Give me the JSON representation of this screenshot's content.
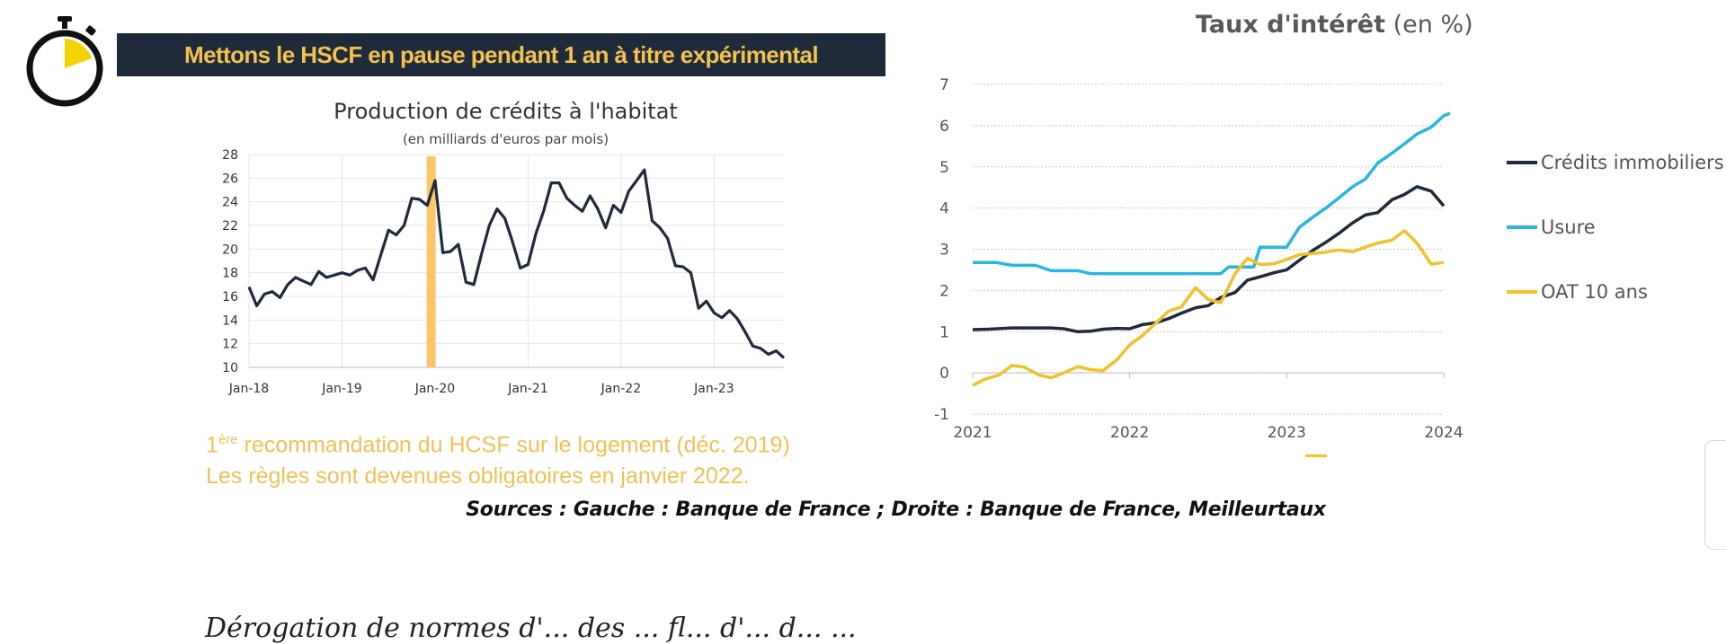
{
  "banner": {
    "text": "Mettons le HSCF en pause pendant 1 an à titre expérimental"
  },
  "colors": {
    "banner_bg": "#1f2a3a",
    "accent_yellow": "#f2c14e",
    "navy": "#1f2a3a",
    "blue": "#29b6e0",
    "gold": "#f2c12e"
  },
  "icons": {
    "timer": "stopwatch-icon"
  },
  "note": {
    "line1_prefix": "1",
    "line1_sup": "ère",
    "line1_rest": " recommandation du HCSF sur le logement (déc. 2019)",
    "line2": "Les règles sont devenues obligatoires en janvier 2022."
  },
  "sources": "Sources : Gauche : Banque de France ; Droite : Banque de France, Meilleurtaux",
  "bottom_text": "Dérogation de normes d'... des ... fl... d'... d... ...",
  "right_title": {
    "strong": "Taux d'intérêt",
    "normal": "(en %)"
  },
  "chart_data": [
    {
      "type": "line",
      "title": "Production de crédits à l'habitat",
      "subtitle": "(en milliards d'euros par mois)",
      "x_start": "2018-01",
      "x_ticks": [
        "Jan-18",
        "Jan-19",
        "Jan-20",
        "Jan-21",
        "Jan-22",
        "Jan-23"
      ],
      "y_ticks": [
        10,
        12,
        14,
        16,
        18,
        20,
        22,
        24,
        26,
        28
      ],
      "ylim": [
        10,
        28
      ],
      "highlight": {
        "date": "2019-12",
        "color": "#f9c76b"
      },
      "series": [
        {
          "color": "#1f2a3a",
          "values": [
            16.8,
            15.2,
            16.2,
            16.4,
            15.9,
            17.0,
            17.6,
            17.3,
            17.0,
            18.1,
            17.6,
            17.8,
            18.0,
            17.8,
            18.2,
            18.4,
            17.4,
            19.5,
            21.6,
            21.2,
            22.0,
            24.3,
            24.2,
            23.7,
            25.8,
            19.7,
            19.8,
            20.4,
            17.2,
            17.0,
            19.6,
            22.0,
            23.4,
            22.6,
            20.6,
            18.4,
            18.7,
            21.3,
            23.2,
            25.6,
            25.6,
            24.3,
            23.7,
            23.2,
            24.5,
            23.4,
            21.8,
            23.7,
            23.1,
            24.9,
            25.8,
            26.7,
            22.4,
            21.8,
            20.9,
            18.6,
            18.5,
            18.0,
            15.0,
            15.6,
            14.6,
            14.2,
            14.8,
            14.1,
            13.0,
            11.8,
            11.6,
            11.1,
            11.4,
            10.8
          ]
        }
      ]
    },
    {
      "type": "line",
      "x_ticks": [
        "2021",
        "2022",
        "2023",
        "2024"
      ],
      "x_range": [
        2021,
        2024
      ],
      "y_ticks": [
        -1,
        0,
        1,
        2,
        3,
        4,
        5,
        6,
        7
      ],
      "ylim": [
        -1,
        7
      ],
      "legend_position": "right",
      "series": [
        {
          "name": "Crédits immobiliers",
          "color": "#1f2a3a",
          "points": [
            [
              2021.0,
              1.05
            ],
            [
              2021.1,
              1.06
            ],
            [
              2021.25,
              1.09
            ],
            [
              2021.5,
              1.09
            ],
            [
              2021.58,
              1.07
            ],
            [
              2021.67,
              1.0
            ],
            [
              2021.75,
              1.01
            ],
            [
              2021.83,
              1.06
            ],
            [
              2021.92,
              1.08
            ],
            [
              2022.0,
              1.07
            ],
            [
              2022.08,
              1.17
            ],
            [
              2022.17,
              1.22
            ],
            [
              2022.25,
              1.32
            ],
            [
              2022.33,
              1.45
            ],
            [
              2022.42,
              1.58
            ],
            [
              2022.5,
              1.63
            ],
            [
              2022.58,
              1.83
            ],
            [
              2022.67,
              1.95
            ],
            [
              2022.75,
              2.25
            ],
            [
              2022.83,
              2.33
            ],
            [
              2022.92,
              2.43
            ],
            [
              2023.0,
              2.5
            ],
            [
              2023.08,
              2.73
            ],
            [
              2023.17,
              2.98
            ],
            [
              2023.25,
              3.17
            ],
            [
              2023.33,
              3.38
            ],
            [
              2023.42,
              3.64
            ],
            [
              2023.5,
              3.83
            ],
            [
              2023.58,
              3.89
            ],
            [
              2023.67,
              4.2
            ],
            [
              2023.75,
              4.33
            ],
            [
              2023.83,
              4.52
            ],
            [
              2023.92,
              4.41
            ],
            [
              2024.0,
              4.05
            ]
          ]
        },
        {
          "name": "Usure",
          "color": "#29b6e0",
          "points": [
            [
              2021.0,
              2.68
            ],
            [
              2021.15,
              2.68
            ],
            [
              2021.25,
              2.61
            ],
            [
              2021.4,
              2.61
            ],
            [
              2021.5,
              2.48
            ],
            [
              2021.67,
              2.48
            ],
            [
              2021.75,
              2.41
            ],
            [
              2022.0,
              2.41
            ],
            [
              2022.58,
              2.41
            ],
            [
              2022.63,
              2.57
            ],
            [
              2022.79,
              2.57
            ],
            [
              2022.83,
              3.05
            ],
            [
              2023.0,
              3.05
            ],
            [
              2023.08,
              3.53
            ],
            [
              2023.17,
              3.79
            ],
            [
              2023.25,
              4.0
            ],
            [
              2023.33,
              4.24
            ],
            [
              2023.42,
              4.52
            ],
            [
              2023.5,
              4.7
            ],
            [
              2023.58,
              5.09
            ],
            [
              2023.67,
              5.33
            ],
            [
              2023.75,
              5.56
            ],
            [
              2023.83,
              5.8
            ],
            [
              2023.92,
              5.96
            ],
            [
              2024.0,
              6.24
            ],
            [
              2024.04,
              6.3
            ]
          ]
        },
        {
          "name": "OAT 10 ans",
          "color": "#f2c12e",
          "points": [
            [
              2021.0,
              -0.3
            ],
            [
              2021.08,
              -0.15
            ],
            [
              2021.17,
              -0.05
            ],
            [
              2021.25,
              0.18
            ],
            [
              2021.33,
              0.14
            ],
            [
              2021.42,
              -0.05
            ],
            [
              2021.5,
              -0.12
            ],
            [
              2021.58,
              0.0
            ],
            [
              2021.67,
              0.15
            ],
            [
              2021.75,
              0.08
            ],
            [
              2021.83,
              0.05
            ],
            [
              2021.92,
              0.32
            ],
            [
              2022.0,
              0.68
            ],
            [
              2022.08,
              0.9
            ],
            [
              2022.17,
              1.22
            ],
            [
              2022.25,
              1.5
            ],
            [
              2022.33,
              1.6
            ],
            [
              2022.42,
              2.07
            ],
            [
              2022.5,
              1.78
            ],
            [
              2022.58,
              1.7
            ],
            [
              2022.67,
              2.4
            ],
            [
              2022.75,
              2.78
            ],
            [
              2022.83,
              2.63
            ],
            [
              2022.92,
              2.65
            ],
            [
              2023.0,
              2.75
            ],
            [
              2023.08,
              2.87
            ],
            [
              2023.17,
              2.9
            ],
            [
              2023.25,
              2.93
            ],
            [
              2023.33,
              2.98
            ],
            [
              2023.42,
              2.94
            ],
            [
              2023.5,
              3.05
            ],
            [
              2023.58,
              3.15
            ],
            [
              2023.67,
              3.22
            ],
            [
              2023.75,
              3.45
            ],
            [
              2023.83,
              3.15
            ],
            [
              2023.92,
              2.64
            ],
            [
              2024.0,
              2.68
            ]
          ]
        }
      ]
    }
  ]
}
